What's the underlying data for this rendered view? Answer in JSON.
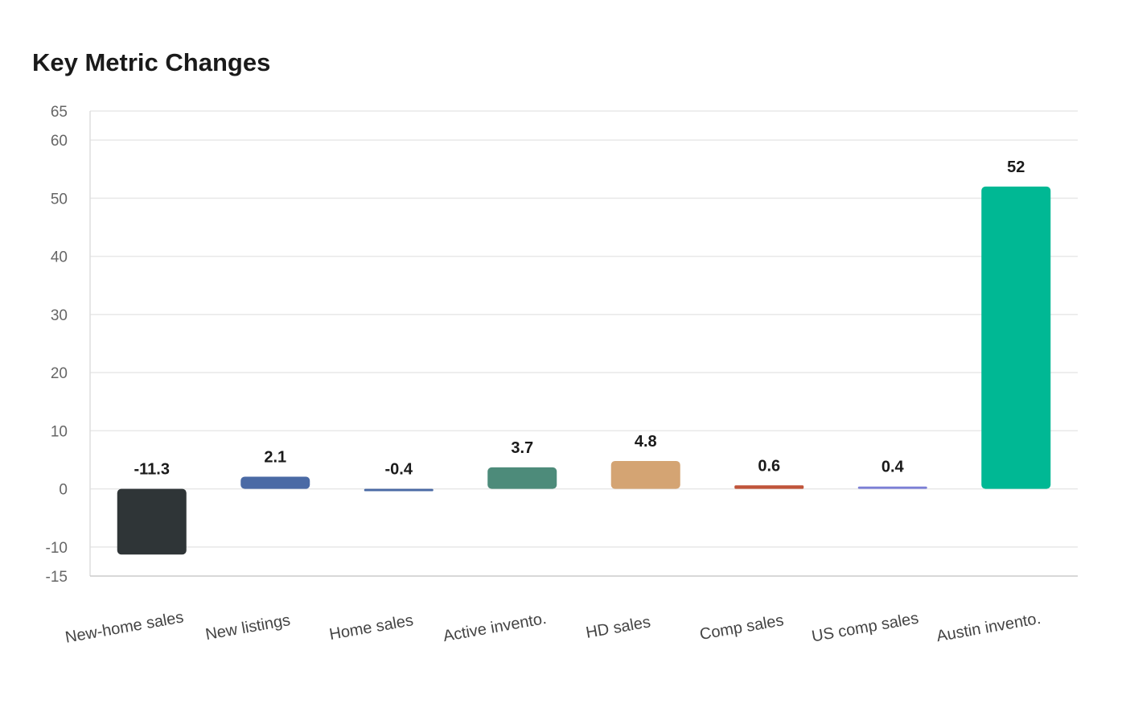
{
  "chart_data": {
    "type": "bar",
    "title": "Key Metric Changes",
    "xlabel": "",
    "ylabel": "",
    "categories": [
      "New-home sales",
      "New listings",
      "Home sales",
      "Active invento.",
      "HD sales",
      "Comp sales",
      "US comp sales",
      "Austin invento."
    ],
    "values": [
      -11.3,
      2.1,
      -0.4,
      3.7,
      4.8,
      0.6,
      0.4,
      52
    ],
    "value_labels": [
      "-11.3",
      "2.1",
      "-0.4",
      "3.7",
      "4.8",
      "0.6",
      "0.4",
      "52"
    ],
    "colors": [
      "#2f3537",
      "#4a6aa5",
      "#4a6aa5",
      "#4d8b7a",
      "#d4a473",
      "#c0543a",
      "#7c7fd6",
      "#00b894"
    ],
    "ylim": [
      -15,
      65
    ],
    "yticks": [
      -15,
      -10,
      0,
      10,
      20,
      30,
      40,
      50,
      60,
      65
    ],
    "grid": true,
    "legend": "none"
  }
}
